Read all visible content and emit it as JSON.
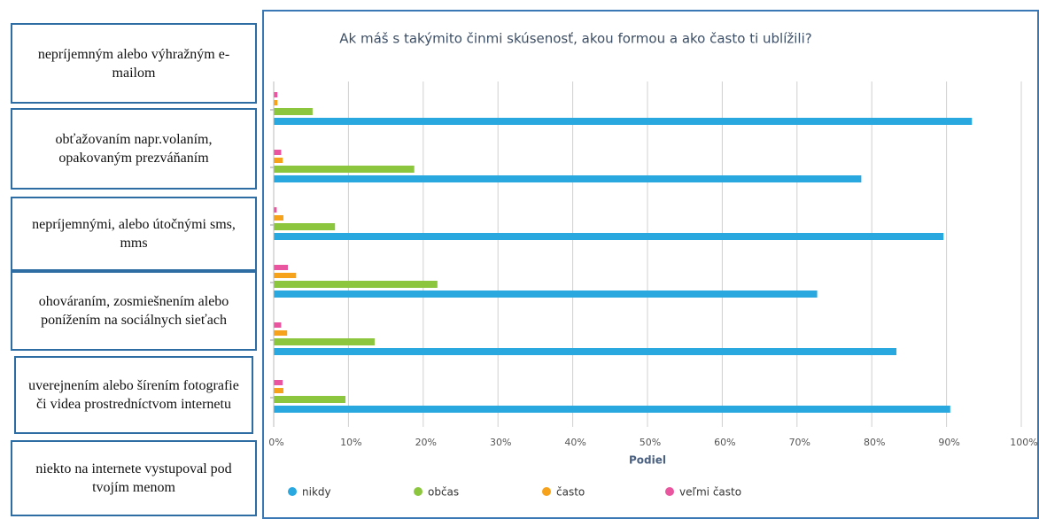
{
  "side_labels": [
    "nepríjemným alebo výhražným e-mailom",
    "obťažovaním napr.volaním, opakovaným prezváňaním",
    "nepríjemnými, alebo útočnými sms, mms",
    "ohováraním, zosmiešnením alebo ponížením na sociálnych sieťach",
    "uverejnením alebo šírením fotografie či videa prostredníctvom internetu",
    "niekto na internete vystupoval pod tvojím menom"
  ],
  "chart_data": {
    "type": "barh",
    "title": "Ak máš s takýmito činmi skúsenosť, akou formou a ako často ti ublížili?",
    "x_label": "Podiel",
    "categories": [
      null,
      null,
      null,
      null,
      null,
      null
    ],
    "series": [
      {
        "name": "nikdy",
        "color": "#29a8e0",
        "values": [
          93.4,
          78.6,
          89.6,
          72.7,
          83.3,
          90.5
        ]
      },
      {
        "name": "občas",
        "color": "#8cc63f",
        "values": [
          5.2,
          18.8,
          8.2,
          21.9,
          13.5,
          9.6
        ]
      },
      {
        "name": "často",
        "color": "#f7a21b",
        "values": [
          0.5,
          1.2,
          1.3,
          3,
          1.8,
          1.3
        ]
      },
      {
        "name": "veľmi často",
        "color": "#e9559e",
        "values": [
          0.5,
          1,
          0.4,
          1.9,
          1,
          1.2
        ]
      }
    ],
    "xlim": [
      0,
      100
    ],
    "xticks": [
      {
        "value": 0,
        "label": "0%"
      },
      {
        "value": 10,
        "label": "10%"
      },
      {
        "value": 20,
        "label": "20%"
      },
      {
        "value": 30,
        "label": "30%"
      },
      {
        "value": 40,
        "label": "40%"
      },
      {
        "value": 50,
        "label": "50%"
      },
      {
        "value": 60,
        "label": "60%"
      },
      {
        "value": 70,
        "label": "70%"
      },
      {
        "value": 80,
        "label": "80%"
      },
      {
        "value": 90,
        "label": "90%"
      },
      {
        "value": 100,
        "label": "100%"
      }
    ],
    "grid": true,
    "legend": "bottom"
  }
}
